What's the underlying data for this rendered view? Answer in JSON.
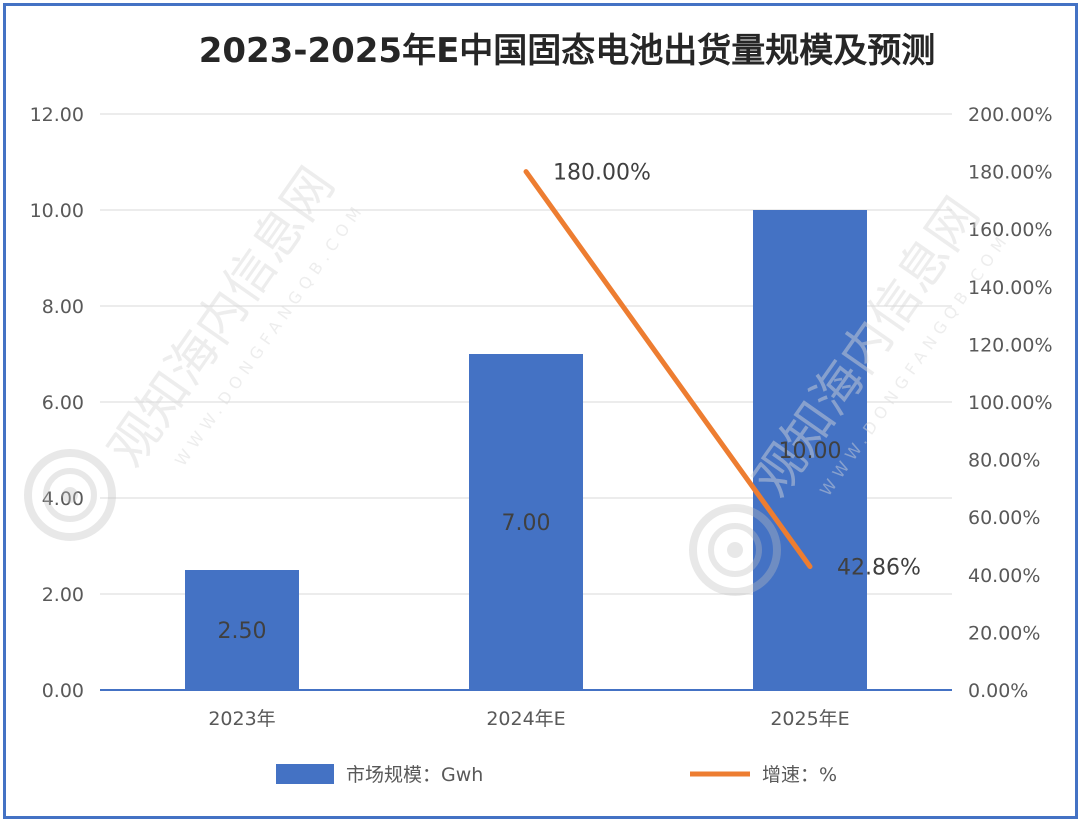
{
  "chart_data": {
    "type": "bar",
    "title": "2023-2025年E中国固态电池出货量规模及预测",
    "categories": [
      "2023年",
      "2024年E",
      "2025年E"
    ],
    "series": [
      {
        "name": "市场规模：Gwh",
        "type": "bar",
        "axis": "left",
        "color": "#4472C4",
        "values": [
          2.5,
          7.0,
          10.0
        ],
        "labels": [
          "2.50",
          "7.00",
          "10.00"
        ]
      },
      {
        "name": "增速：%",
        "type": "line",
        "axis": "right",
        "color": "#ED7D31",
        "values": [
          null,
          180.0,
          42.86
        ],
        "labels": [
          null,
          "180.00%",
          "42.86%"
        ]
      }
    ],
    "ylim": [
      0,
      12
    ],
    "y_ticks": [
      "0.00",
      "2.00",
      "4.00",
      "6.00",
      "8.00",
      "10.00",
      "12.00"
    ],
    "y2lim": [
      0,
      200
    ],
    "y2_ticks": [
      "0.00%",
      "20.00%",
      "40.00%",
      "60.00%",
      "80.00%",
      "100.00%",
      "120.00%",
      "140.00%",
      "160.00%",
      "180.00%",
      "200.00%"
    ],
    "grid": true,
    "legend_position": "bottom"
  },
  "watermark": {
    "text": "观知海内信息网",
    "url": "WWW.DONGFANGQB.COM"
  }
}
